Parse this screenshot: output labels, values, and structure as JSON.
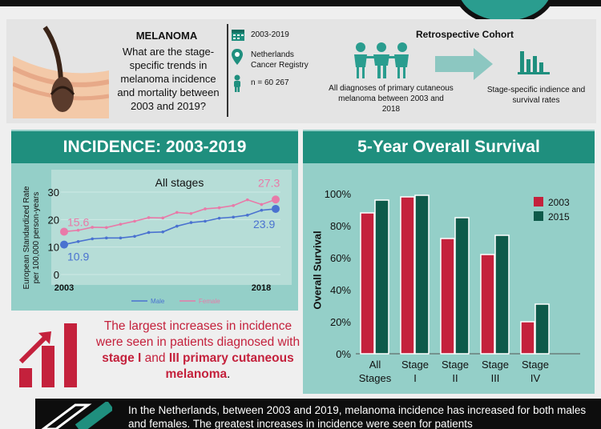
{
  "header": {
    "title": "MELANOMA",
    "question": "What are the stage-specific trends in melanoma incidence and mortality between 2003 and 2019?",
    "facts": [
      {
        "icon": "calendar-icon",
        "text": "2003-2019"
      },
      {
        "icon": "location-pin-icon",
        "text": "Netherlands Cancer Registry"
      },
      {
        "icon": "person-icon",
        "text": "n = 60 267"
      }
    ],
    "design": "Retrospective Cohort",
    "input_label": "All diagnoses of primary cutaneous melanoma between 2003 and 2018",
    "output_label": "Stage-specific indience and survival rates"
  },
  "incidence": {
    "heading": "INCIDENCE: 2003-2019",
    "chart_title": "All stages",
    "ylabel_1": "European Standardized Rate",
    "ylabel_2": "per 100,000 person-years",
    "x_start": "2003",
    "x_end": "2018",
    "yticks": [
      "30",
      "20",
      "10",
      "0"
    ],
    "female_start": "15.6",
    "female_end": "27.3",
    "male_start": "10.9",
    "male_end": "23.9",
    "legend_male": "Male",
    "legend_female": "Female",
    "conclusion_1": "The largest increases in incidence were seen in patients diagnosed with ",
    "conclusion_hl": "stage I",
    "conclusion_2": " and ",
    "conclusion_hl2": "III primary cutaneous melanoma",
    "conclusion_3": "."
  },
  "survival": {
    "heading": "5-Year Overall Survival",
    "ylabel": "Overall Survival",
    "yticks": [
      "100%",
      "80%",
      "60%",
      "40%",
      "20%",
      "0%"
    ],
    "legend_2003": "2003",
    "legend_2015": "2015",
    "categories": [
      {
        "l1": "All",
        "l2": "Stages"
      },
      {
        "l1": "Stage",
        "l2": "I"
      },
      {
        "l1": "Stage",
        "l2": "II"
      },
      {
        "l1": "Stage",
        "l2": "III"
      },
      {
        "l1": "Stage",
        "l2": "IV"
      }
    ]
  },
  "bottom_text": "In the Netherlands, between 2003 and 2019, melanoma incidence has increased for both males and females. The greatest increases in incidence were seen for patients",
  "colors": {
    "teal": "#1f8f7e",
    "panel": "#94cfc8",
    "red": "#c4213c",
    "dark_green": "#0e5a4a",
    "pink": "#e87aa8",
    "blue": "#4a72d0"
  },
  "chart_data": [
    {
      "type": "line",
      "title": "All stages",
      "xlabel": "",
      "ylabel": "European Standardized Rate per 100,000 person-years",
      "x": [
        2003,
        2004,
        2005,
        2006,
        2007,
        2008,
        2009,
        2010,
        2011,
        2012,
        2013,
        2014,
        2015,
        2016,
        2017,
        2018
      ],
      "ylim": [
        0,
        30
      ],
      "series": [
        {
          "name": "Male",
          "values": [
            10.9,
            12.0,
            13.0,
            13.3,
            13.3,
            13.9,
            15.3,
            15.5,
            17.6,
            18.9,
            19.4,
            20.5,
            20.9,
            21.6,
            23.4,
            23.9
          ]
        },
        {
          "name": "Female",
          "values": [
            15.6,
            16.1,
            17.2,
            17.1,
            18.3,
            19.4,
            20.7,
            20.6,
            22.6,
            22.2,
            23.9,
            24.3,
            25.1,
            27.2,
            25.5,
            27.3
          ]
        }
      ]
    },
    {
      "type": "bar",
      "title": "5-Year Overall Survival",
      "xlabel": "",
      "ylabel": "Overall Survival",
      "categories": [
        "All Stages",
        "Stage I",
        "Stage II",
        "Stage III",
        "Stage IV"
      ],
      "ylim": [
        0,
        100
      ],
      "series": [
        {
          "name": "2003",
          "values": [
            88,
            98,
            72,
            62,
            20
          ]
        },
        {
          "name": "2015",
          "values": [
            96,
            99,
            85,
            74,
            31
          ]
        }
      ]
    }
  ]
}
